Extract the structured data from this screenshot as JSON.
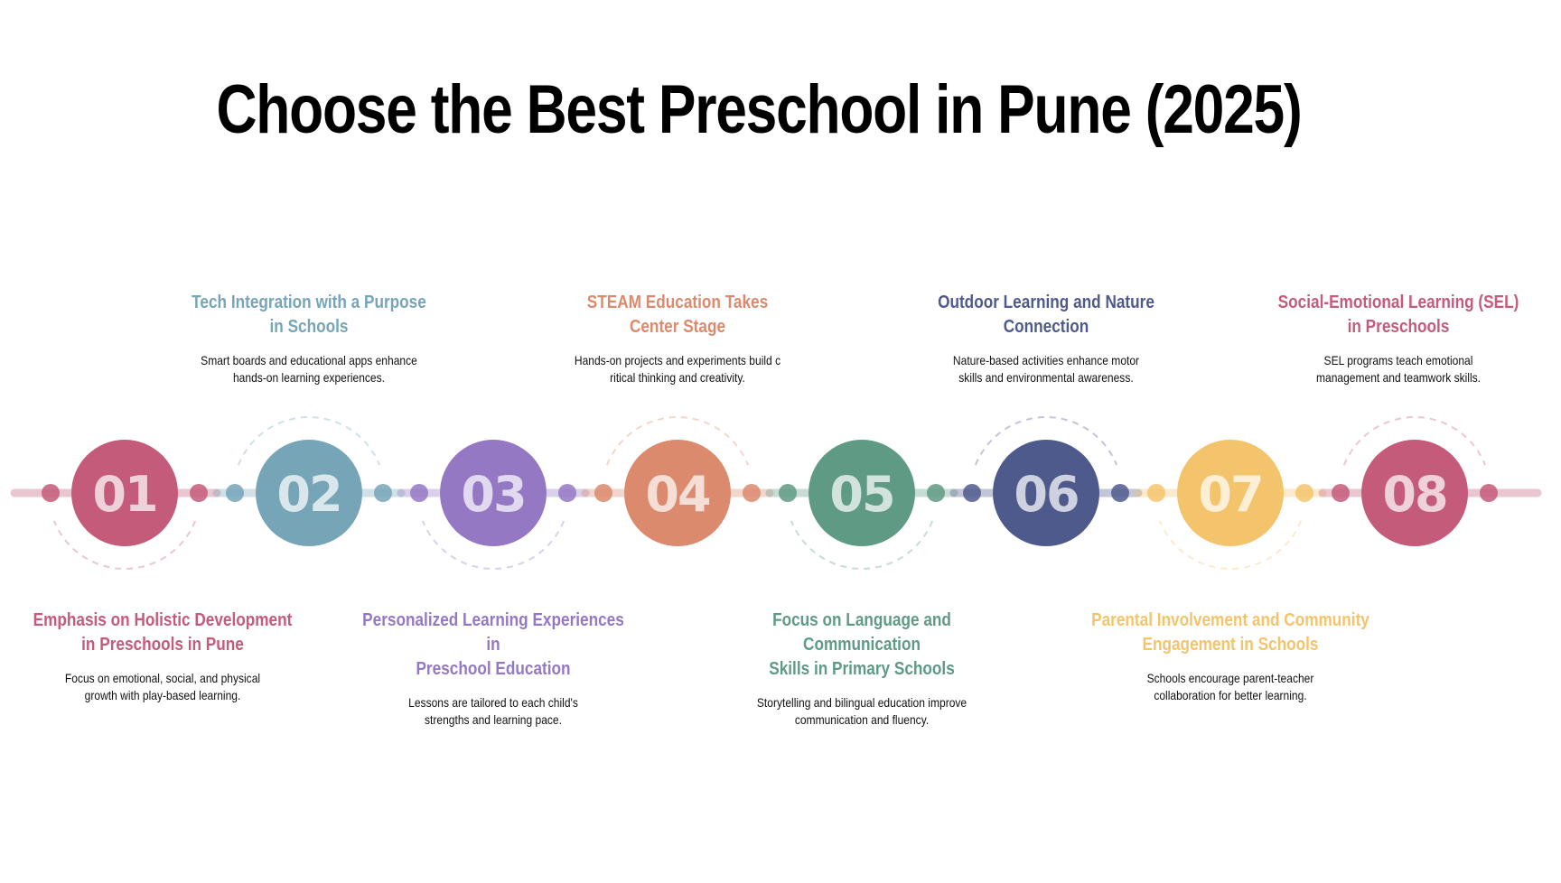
{
  "title": "Choose the Best Preschool in Pune (2025)",
  "steps": [
    {
      "number": "01",
      "color": "#c45b7a",
      "heading": "Emphasis on Holistic Development\nin Preschools in Pune",
      "description": "Focus on emotional, social, and physical\ngrowth with play-based learning."
    },
    {
      "number": "02",
      "color": "#76a5b8",
      "heading": "Tech Integration with a Purpose\nin Schools",
      "description": "Smart boards and educational apps enhance\nhands-on learning experiences."
    },
    {
      "number": "03",
      "color": "#9478c4",
      "heading": "Personalized Learning Experiences in\nPreschool Education",
      "description": "Lessons are tailored to each child's\nstrengths and learning pace."
    },
    {
      "number": "04",
      "color": "#db8a6d",
      "heading": "STEAM Education Takes\nCenter Stage",
      "description": "Hands-on projects and experiments build c\nritical thinking and creativity."
    },
    {
      "number": "05",
      "color": "#5f9a84",
      "heading": "Focus on Language and Communication\nSkills in Primary Schools",
      "description": "Storytelling and bilingual education improve\ncommunication and fluency."
    },
    {
      "number": "06",
      "color": "#4f5a8c",
      "heading": "Outdoor Learning and Nature\nConnection",
      "description": "Nature-based activities enhance motor\nskills and environmental awareness."
    },
    {
      "number": "07",
      "color": "#f4c46c",
      "heading": "Parental Involvement and Community\nEngagement in Schools",
      "description": "Schools encourage parent-teacher\ncollaboration for better learning."
    },
    {
      "number": "08",
      "color": "#c45b7a",
      "heading": "Social-Emotional Learning (SEL)\nin Preschools",
      "description": "SEL programs teach emotional\nmanagement and teamwork skills."
    }
  ]
}
